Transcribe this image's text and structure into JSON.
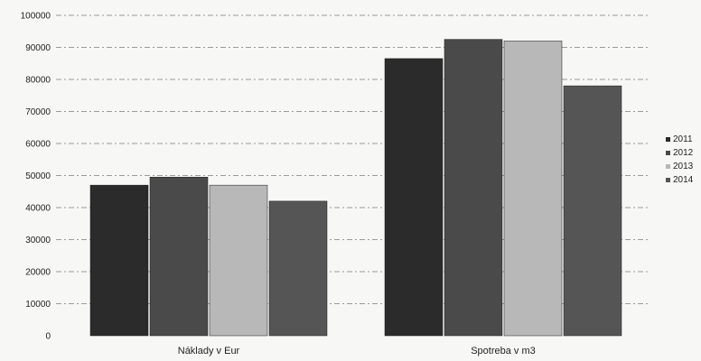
{
  "chart_data": {
    "type": "bar",
    "categories": [
      "Náklady v Eur",
      "Spotreba v m3"
    ],
    "series": [
      {
        "name": "2011",
        "values": [
          47000,
          86500
        ],
        "color": "#2b2b2b"
      },
      {
        "name": "2012",
        "values": [
          49500,
          92500
        ],
        "color": "#4a4a4a"
      },
      {
        "name": "2013",
        "values": [
          47000,
          92000
        ],
        "color": "#b8b8b8"
      },
      {
        "name": "2014",
        "values": [
          42000,
          78000
        ],
        "color": "#555555"
      }
    ],
    "ylim": [
      0,
      100000
    ],
    "yticks": [
      0,
      10000,
      20000,
      30000,
      40000,
      50000,
      60000,
      70000,
      80000,
      90000,
      100000
    ],
    "ytick_labels": [
      "0",
      "10000",
      "20000",
      "30000",
      "40000",
      "50000",
      "60000",
      "70000",
      "80000",
      "90000",
      "100000"
    ],
    "grid": true,
    "legend_position": "right"
  }
}
